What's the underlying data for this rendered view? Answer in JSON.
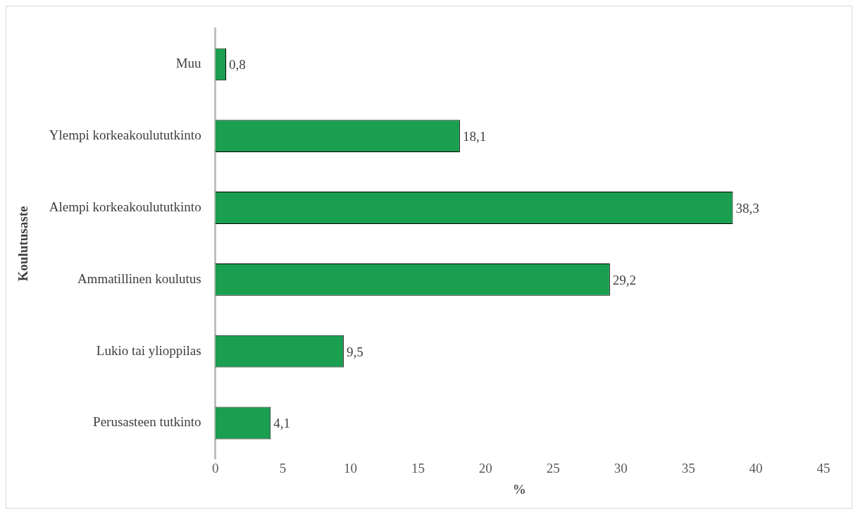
{
  "chart_data": {
    "type": "bar",
    "orientation": "horizontal",
    "xlabel": "%",
    "ylabel": "Koulutusaste",
    "categories": [
      "Muu",
      "Ylempi korkeakoulututkinto",
      "Alempi korkeakoulututkinto",
      "Ammatillinen koulutus",
      "Lukio tai ylioppilas",
      "Perusasteen tutkinto"
    ],
    "values": [
      0.8,
      18.1,
      38.3,
      29.2,
      9.5,
      4.1
    ],
    "value_labels": [
      "0,8",
      "18,1",
      "38,3",
      "29,2",
      "9,5",
      "4,1"
    ],
    "color": "#1a9e50",
    "xlim": [
      0,
      45
    ],
    "xticks": [
      0,
      5,
      10,
      15,
      20,
      25,
      30,
      35,
      40,
      45
    ],
    "grid": false,
    "legend": false
  }
}
